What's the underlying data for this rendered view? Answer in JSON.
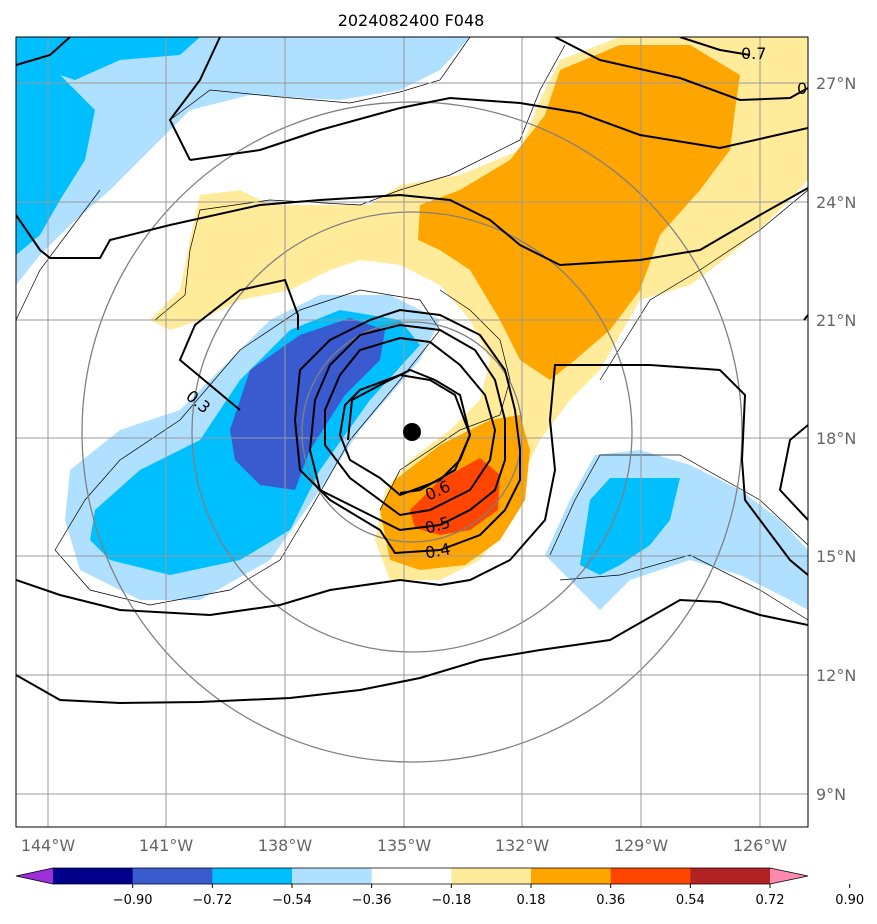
{
  "title": "2024082400 F048",
  "map": {
    "lon_ticks": [
      "144°W",
      "141°W",
      "138°W",
      "135°W",
      "132°W",
      "129°W",
      "126°W"
    ],
    "lat_ticks": [
      "27°N",
      "24°N",
      "21°N",
      "18°N",
      "15°N",
      "12°N",
      "9°N"
    ],
    "storm_center": {
      "lon": -134.8,
      "lat": 18.2
    },
    "gridlines": true
  },
  "contour_labels": [
    "0.7",
    "0.3",
    "0.6",
    "0.5",
    "0.4"
  ],
  "colorbar": {
    "ticks": [
      "−0.90",
      "−0.72",
      "−0.54",
      "−0.36",
      "−0.18",
      "0.18",
      "0.36",
      "0.54",
      "0.72",
      "0.90"
    ],
    "colors": [
      "#9b30d9",
      "#00008b",
      "#3a5bd0",
      "#00bfff",
      "#b0e0ff",
      "#ffffff",
      "#ffeb99",
      "#ffa500",
      "#ff4500",
      "#b22222",
      "#ff88b0"
    ],
    "extend": "both"
  }
}
